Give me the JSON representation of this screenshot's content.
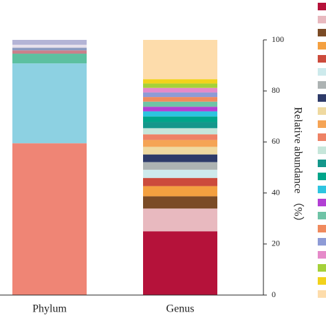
{
  "chart_data": {
    "type": "stacked_bar",
    "categories": [
      "Phylum",
      "Genus"
    ],
    "y_label": "Relative abundance （%）",
    "ylim": [
      0,
      100
    ],
    "yticks": [
      0,
      20,
      40,
      60,
      80,
      100
    ],
    "series": [
      {
        "color": "#ef8575",
        "values": [
          59.5,
          null
        ]
      },
      {
        "color": "#8dd1e2",
        "values": [
          31.3,
          null
        ]
      },
      {
        "color": "#5cc0a0",
        "values": [
          3.8,
          null
        ]
      },
      {
        "color": "#c9808a",
        "values": [
          1.3,
          null
        ]
      },
      {
        "color": "#8a9ac0",
        "values": [
          1.0,
          null
        ]
      },
      {
        "color": "#e8e0ec",
        "values": [
          1.2,
          null
        ]
      },
      {
        "color": "#b4b4d6",
        "values": [
          1.9,
          null
        ]
      },
      {
        "color": "#b5123a",
        "values": [
          null,
          25
        ]
      },
      {
        "color": "#e8b9bf",
        "values": [
          null,
          8.9
        ]
      },
      {
        "color": "#7b4b26",
        "values": [
          null,
          4.8
        ]
      },
      {
        "color": "#f4a040",
        "values": [
          null,
          4
        ]
      },
      {
        "color": "#cc4b3c",
        "values": [
          null,
          3.2
        ]
      },
      {
        "color": "#cdeaec",
        "values": [
          null,
          3.2
        ]
      },
      {
        "color": "#adb3b3",
        "values": [
          null,
          3
        ]
      },
      {
        "color": "#2e3b69",
        "values": [
          null,
          3
        ]
      },
      {
        "color": "#efd9a0",
        "values": [
          null,
          3
        ]
      },
      {
        "color": "#f5a455",
        "values": [
          null,
          2.7
        ]
      },
      {
        "color": "#ee8265",
        "values": [
          null,
          2.2
        ]
      },
      {
        "color": "#c6e6da",
        "values": [
          null,
          2.4
        ]
      },
      {
        "color": "#14978b",
        "values": [
          null,
          2.4
        ]
      },
      {
        "color": "#00a58a",
        "values": [
          null,
          2.2
        ]
      },
      {
        "color": "#2ec4e0",
        "values": [
          null,
          2.0
        ]
      },
      {
        "color": "#b23fd4",
        "values": [
          null,
          1.8
        ]
      },
      {
        "color": "#6fc3a6",
        "values": [
          null,
          2.0
        ]
      },
      {
        "color": "#f08a5d",
        "values": [
          null,
          1.8
        ]
      },
      {
        "color": "#8e9bd6",
        "values": [
          null,
          1.8
        ]
      },
      {
        "color": "#e58ac9",
        "values": [
          null,
          1.8
        ]
      },
      {
        "color": "#a5d13a",
        "values": [
          null,
          1.7
        ]
      },
      {
        "color": "#f2d21c",
        "values": [
          null,
          1.7
        ]
      },
      {
        "color": "#fddcab",
        "values": [
          null,
          15.4
        ]
      }
    ]
  }
}
